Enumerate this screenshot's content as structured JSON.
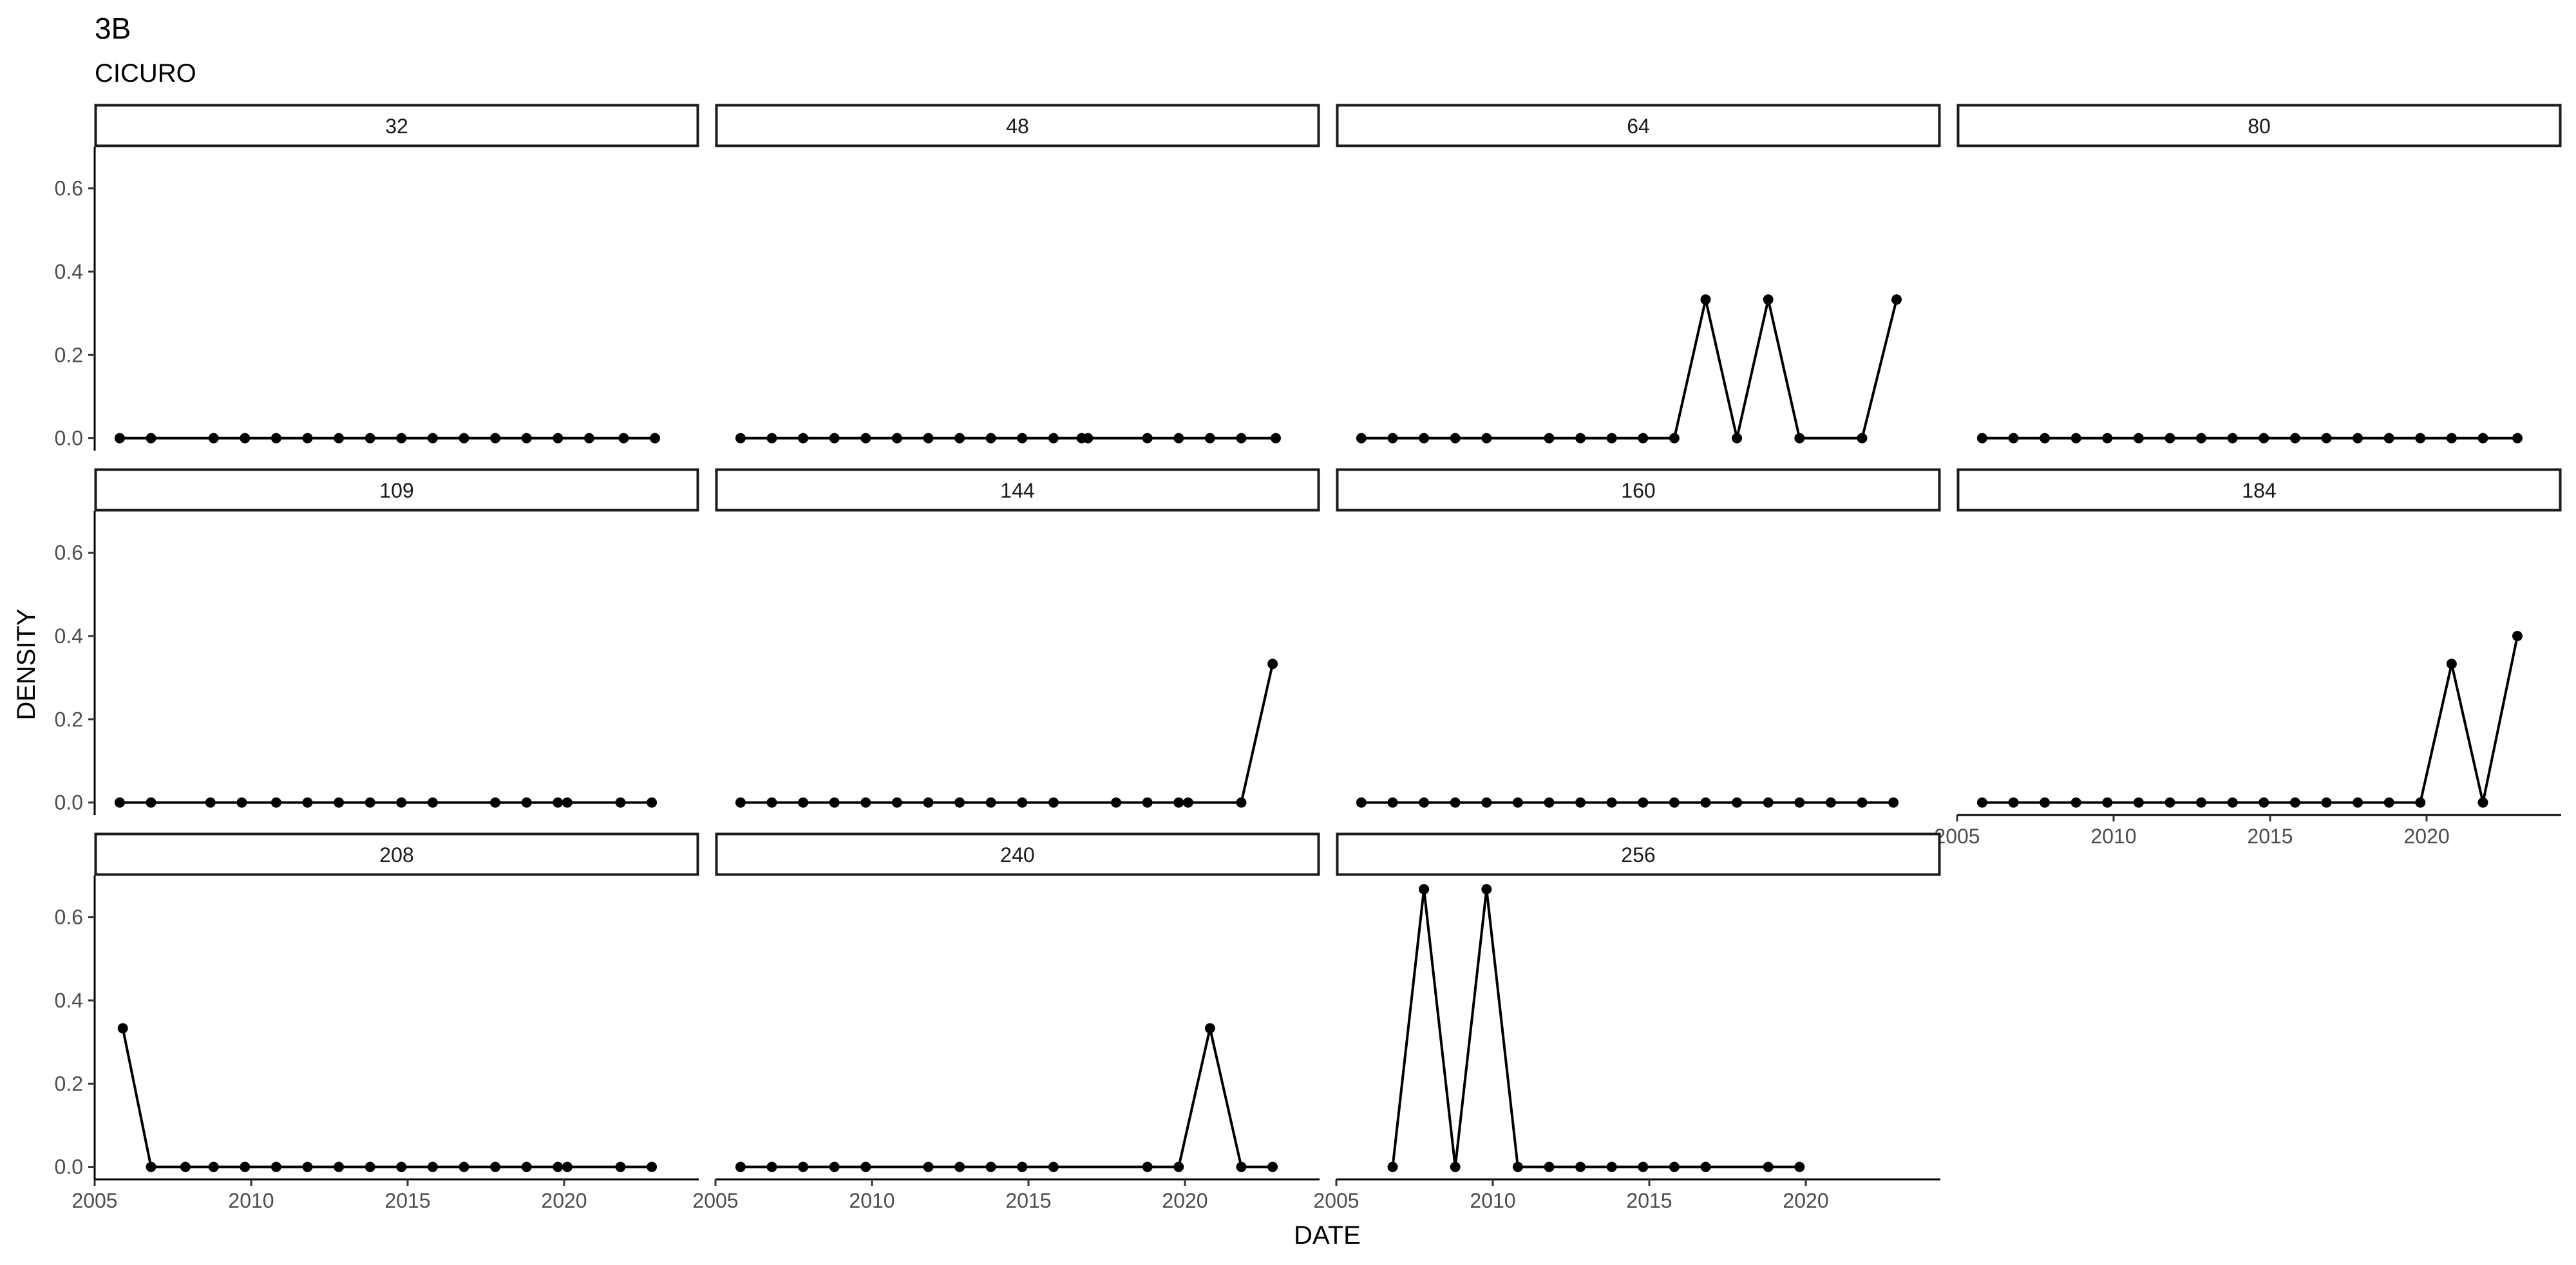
{
  "chart_data": {
    "type": "line",
    "title": "3B",
    "subtitle": "CICURO",
    "xlabel": "DATE",
    "ylabel": "DENSITY",
    "xlim": [
      2005,
      2024.3
    ],
    "ylim": [
      -0.03,
      0.7
    ],
    "xticks": [
      2005,
      2010,
      2015,
      2020
    ],
    "yticks": [
      0.0,
      0.2,
      0.4,
      0.6
    ],
    "ytick_labels": [
      "0.0",
      "0.2",
      "0.4",
      "0.6"
    ],
    "grid": false,
    "markers": true,
    "color": "#000000",
    "panels": [
      {
        "label": "32",
        "x": [
          2005.8,
          2006.8,
          2008.8,
          2009.8,
          2010.8,
          2011.8,
          2012.8,
          2013.8,
          2014.8,
          2015.8,
          2016.8,
          2017.8,
          2018.8,
          2019.8,
          2020.8,
          2021.9,
          2022.9
        ],
        "y": [
          0,
          0,
          0,
          0,
          0,
          0,
          0,
          0,
          0,
          0,
          0,
          0,
          0,
          0,
          0,
          0,
          0
        ]
      },
      {
        "label": "48",
        "x": [
          2005.8,
          2006.8,
          2007.8,
          2008.8,
          2009.8,
          2010.8,
          2011.8,
          2012.8,
          2013.8,
          2014.8,
          2015.8,
          2016.7,
          2016.9,
          2018.8,
          2019.8,
          2020.8,
          2021.8,
          2022.9
        ],
        "y": [
          0,
          0,
          0,
          0,
          0,
          0,
          0,
          0,
          0,
          0,
          0,
          0,
          0,
          0,
          0,
          0,
          0,
          0
        ]
      },
      {
        "label": "64",
        "x": [
          2005.8,
          2006.8,
          2007.8,
          2008.8,
          2009.8,
          2011.8,
          2012.8,
          2013.8,
          2014.8,
          2015.8,
          2016.8,
          2017.8,
          2018.8,
          2019.8,
          2021.8,
          2022.9
        ],
        "y": [
          0,
          0,
          0,
          0,
          0,
          0,
          0,
          0,
          0,
          0,
          0.333,
          0,
          0.333,
          0,
          0,
          0.333
        ]
      },
      {
        "label": "80",
        "x": [
          2005.8,
          2006.8,
          2007.8,
          2008.8,
          2009.8,
          2010.8,
          2011.8,
          2012.8,
          2013.8,
          2014.8,
          2015.8,
          2016.8,
          2017.8,
          2018.8,
          2019.8,
          2020.8,
          2021.8,
          2022.9
        ],
        "y": [
          0,
          0,
          0,
          0,
          0,
          0,
          0,
          0,
          0,
          0,
          0,
          0,
          0,
          0,
          0,
          0,
          0,
          0
        ]
      },
      {
        "label": "109",
        "x": [
          2005.8,
          2006.8,
          2008.7,
          2009.7,
          2010.8,
          2011.8,
          2012.8,
          2013.8,
          2014.8,
          2015.8,
          2017.8,
          2018.8,
          2019.8,
          2020.1,
          2021.8,
          2022.8
        ],
        "y": [
          0,
          0,
          0,
          0,
          0,
          0,
          0,
          0,
          0,
          0,
          0,
          0,
          0,
          0,
          0,
          0
        ]
      },
      {
        "label": "144",
        "x": [
          2005.8,
          2006.8,
          2007.8,
          2008.8,
          2009.8,
          2010.8,
          2011.8,
          2012.8,
          2013.8,
          2014.8,
          2015.8,
          2017.8,
          2018.8,
          2019.8,
          2020.1,
          2021.8,
          2022.8
        ],
        "y": [
          0,
          0,
          0,
          0,
          0,
          0,
          0,
          0,
          0,
          0,
          0,
          0,
          0,
          0,
          0,
          0,
          0.333
        ]
      },
      {
        "label": "160",
        "x": [
          2005.8,
          2006.8,
          2007.8,
          2008.8,
          2009.8,
          2010.8,
          2011.8,
          2012.8,
          2013.8,
          2014.8,
          2015.8,
          2016.8,
          2017.8,
          2018.8,
          2019.8,
          2020.8,
          2021.8,
          2022.8
        ],
        "y": [
          0,
          0,
          0,
          0,
          0,
          0,
          0,
          0,
          0,
          0,
          0,
          0,
          0,
          0,
          0,
          0,
          0,
          0
        ]
      },
      {
        "label": "184",
        "x": [
          2005.8,
          2006.8,
          2007.8,
          2008.8,
          2009.8,
          2010.8,
          2011.8,
          2012.8,
          2013.8,
          2014.8,
          2015.8,
          2016.8,
          2017.8,
          2018.8,
          2019.8,
          2020.8,
          2021.8,
          2022.9
        ],
        "y": [
          0,
          0,
          0,
          0,
          0,
          0,
          0,
          0,
          0,
          0,
          0,
          0,
          0,
          0,
          0,
          0.333,
          0,
          0.4
        ]
      },
      {
        "label": "208",
        "x": [
          2005.9,
          2006.8,
          2007.9,
          2008.8,
          2009.8,
          2010.8,
          2011.8,
          2012.8,
          2013.8,
          2014.8,
          2015.8,
          2016.8,
          2017.8,
          2018.8,
          2019.8,
          2020.1,
          2021.8,
          2022.8
        ],
        "y": [
          0.333,
          0,
          0,
          0,
          0,
          0,
          0,
          0,
          0,
          0,
          0,
          0,
          0,
          0,
          0,
          0,
          0,
          0
        ]
      },
      {
        "label": "240",
        "x": [
          2005.8,
          2006.8,
          2007.8,
          2008.8,
          2009.8,
          2011.8,
          2012.8,
          2013.8,
          2014.8,
          2015.8,
          2018.8,
          2019.8,
          2020.8,
          2021.8,
          2022.8
        ],
        "y": [
          0,
          0,
          0,
          0,
          0,
          0,
          0,
          0,
          0,
          0,
          0,
          0,
          0.333,
          0,
          0
        ]
      },
      {
        "label": "256",
        "x": [
          2006.8,
          2007.8,
          2008.8,
          2009.8,
          2010.8,
          2011.8,
          2012.8,
          2013.8,
          2014.8,
          2015.8,
          2016.8,
          2018.8,
          2019.8
        ],
        "y": [
          0,
          0.667,
          0,
          0.667,
          0,
          0,
          0,
          0,
          0,
          0,
          0,
          0,
          0
        ]
      }
    ]
  }
}
